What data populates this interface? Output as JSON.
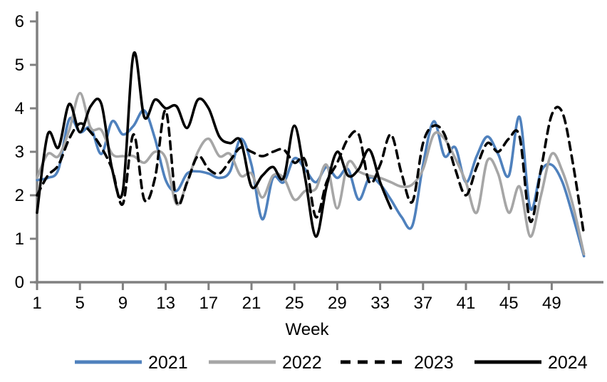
{
  "chart_data": {
    "type": "line",
    "title": "",
    "xlabel": "Week",
    "ylabel": "",
    "x_ticks": [
      1,
      5,
      9,
      13,
      17,
      21,
      25,
      29,
      33,
      37,
      41,
      45,
      49
    ],
    "y_ticks": [
      0,
      1,
      2,
      3,
      4,
      5,
      6
    ],
    "ylim": [
      0,
      6
    ],
    "x_range_weeks": [
      1,
      52
    ],
    "grid": "off",
    "legend_position": "bottom",
    "line_style_note": "smoothed lines, no markers",
    "axis_color": "#808080",
    "series": [
      {
        "name": "2021",
        "color": "#4F81BD",
        "style": "solid",
        "start_week": 1,
        "values": [
          2.35,
          2.4,
          2.6,
          3.75,
          3.45,
          3.55,
          2.95,
          3.7,
          3.4,
          3.6,
          3.95,
          3.3,
          2.35,
          2.1,
          2.5,
          2.55,
          2.5,
          2.4,
          2.55,
          3.3,
          2.7,
          1.45,
          2.4,
          2.3,
          2.85,
          2.6,
          2.3,
          2.65,
          2.4,
          2.6,
          1.9,
          2.4,
          2.25,
          1.9,
          1.5,
          1.3,
          2.7,
          3.7,
          2.9,
          3.1,
          2.3,
          2.9,
          3.35,
          2.95,
          2.45,
          3.8,
          1.7,
          2.55,
          2.7,
          2.3,
          1.5,
          0.6
        ]
      },
      {
        "name": "2022",
        "color": "#A6A6A6",
        "style": "solid",
        "start_week": 1,
        "values": [
          2.4,
          2.95,
          2.9,
          3.5,
          4.35,
          3.55,
          3.5,
          2.95,
          2.9,
          2.9,
          2.75,
          3.0,
          2.85,
          1.8,
          2.3,
          3.0,
          3.3,
          2.9,
          2.95,
          2.45,
          2.5,
          1.95,
          2.45,
          2.4,
          1.9,
          2.1,
          2.15,
          2.7,
          1.7,
          2.75,
          2.55,
          2.45,
          2.4,
          2.3,
          2.2,
          2.25,
          2.6,
          3.4,
          3.3,
          2.85,
          2.3,
          1.6,
          2.8,
          2.5,
          1.6,
          2.2,
          1.05,
          2.0,
          2.95,
          2.55,
          1.75,
          0.65
        ]
      },
      {
        "name": "2023",
        "color": "#000000",
        "style": "dashed",
        "start_week": 1,
        "values": [
          2.0,
          2.45,
          2.7,
          3.3,
          3.65,
          3.45,
          3.1,
          2.6,
          1.8,
          3.4,
          1.9,
          2.4,
          3.95,
          1.85,
          2.3,
          2.9,
          2.6,
          2.5,
          2.8,
          3.1,
          3.0,
          2.9,
          3.0,
          3.05,
          2.75,
          2.8,
          1.5,
          2.3,
          2.75,
          3.3,
          3.4,
          2.3,
          2.7,
          3.4,
          2.5,
          1.85,
          3.2,
          3.6,
          3.4,
          2.6,
          2.0,
          2.65,
          3.2,
          3.0,
          3.3,
          3.35,
          1.4,
          2.6,
          3.85,
          3.9,
          2.7,
          1.1
        ]
      },
      {
        "name": "2024",
        "color": "#000000",
        "style": "solid",
        "start_week": 1,
        "values": [
          1.6,
          3.4,
          3.1,
          4.1,
          3.45,
          4.05,
          4.1,
          2.6,
          2.1,
          5.25,
          3.8,
          4.2,
          4.0,
          4.05,
          3.55,
          4.2,
          4.0,
          3.35,
          3.2,
          3.25,
          2.2,
          2.45,
          2.65,
          2.4,
          3.6,
          2.4,
          1.05,
          2.2,
          3.0,
          2.45,
          2.6,
          3.05,
          2.3,
          1.7
        ]
      }
    ]
  },
  "legend": {
    "items": [
      {
        "label": "2021"
      },
      {
        "label": "2022"
      },
      {
        "label": "2023"
      },
      {
        "label": "2024"
      }
    ]
  }
}
